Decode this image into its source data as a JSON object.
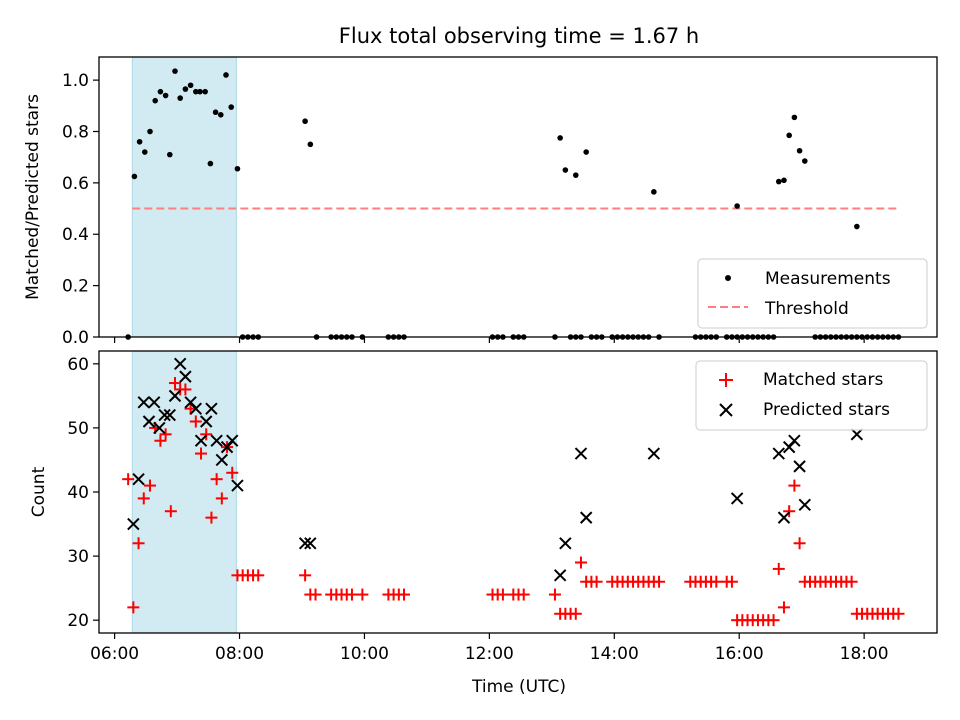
{
  "figure": {
    "title": "Flux total observing time = 1.67 h"
  },
  "colors": {
    "measurements": "#000000",
    "threshold": "#ff7f7f",
    "matched": "#ff0000",
    "predicted": "#000000",
    "shade": "#add8e6"
  },
  "chart_data": [
    {
      "type": "scatter",
      "title": "Flux total observing time = 1.67 h",
      "xlabel": "",
      "ylabel": "Matched/Predicted stars",
      "xlim": [
        "05:45",
        "19:10"
      ],
      "ylim": [
        0,
        1.09
      ],
      "yticks": [
        "0.0",
        "0.2",
        "0.4",
        "0.6",
        "0.8",
        "1.0"
      ],
      "shaded_interval": [
        "06:17",
        "07:57"
      ],
      "legend": {
        "position": "lower right",
        "entries": [
          "Measurements",
          "Threshold"
        ]
      },
      "threshold": {
        "name": "Threshold",
        "value": 0.5,
        "x": [
          "06:17",
          "18:32"
        ]
      },
      "series": [
        {
          "name": "Measurements",
          "marker": "dot",
          "points": [
            [
              "06:13",
              0.0
            ],
            [
              "06:19",
              0.625
            ],
            [
              "06:24",
              0.76
            ],
            [
              "06:29",
              0.72
            ],
            [
              "06:34",
              0.8
            ],
            [
              "06:39",
              0.92
            ],
            [
              "06:44",
              0.955
            ],
            [
              "06:49",
              0.94
            ],
            [
              "06:53",
              0.71
            ],
            [
              "06:58",
              1.035
            ],
            [
              "07:03",
              0.93
            ],
            [
              "07:08",
              0.965
            ],
            [
              "07:13",
              0.98
            ],
            [
              "07:18",
              0.955
            ],
            [
              "07:22",
              0.955
            ],
            [
              "07:27",
              0.955
            ],
            [
              "07:32",
              0.675
            ],
            [
              "07:37",
              0.875
            ],
            [
              "07:42",
              0.865
            ],
            [
              "07:47",
              1.02
            ],
            [
              "07:52",
              0.895
            ],
            [
              "07:58",
              0.655
            ],
            [
              "08:03",
              0.0
            ],
            [
              "08:08",
              0.0
            ],
            [
              "08:13",
              0.0
            ],
            [
              "08:18",
              0.0
            ],
            [
              "09:03",
              0.84
            ],
            [
              "09:08",
              0.75
            ],
            [
              "09:14",
              0.0
            ],
            [
              "09:28",
              0.0
            ],
            [
              "09:33",
              0.0
            ],
            [
              "09:38",
              0.0
            ],
            [
              "09:43",
              0.0
            ],
            [
              "09:48",
              0.0
            ],
            [
              "09:58",
              0.0
            ],
            [
              "10:23",
              0.0
            ],
            [
              "10:28",
              0.0
            ],
            [
              "10:33",
              0.0
            ],
            [
              "10:38",
              0.0
            ],
            [
              "12:03",
              0.0
            ],
            [
              "12:08",
              0.0
            ],
            [
              "12:13",
              0.0
            ],
            [
              "12:23",
              0.0
            ],
            [
              "12:28",
              0.0
            ],
            [
              "12:33",
              0.0
            ],
            [
              "13:03",
              0.0
            ],
            [
              "13:08",
              0.775
            ],
            [
              "13:13",
              0.65
            ],
            [
              "13:18",
              0.0
            ],
            [
              "13:23",
              0.0
            ],
            [
              "13:28",
              0.0
            ],
            [
              "13:23",
              0.63
            ],
            [
              "13:33",
              0.72
            ],
            [
              "13:38",
              0.0
            ],
            [
              "13:43",
              0.0
            ],
            [
              "13:48",
              0.0
            ],
            [
              "13:58",
              0.0
            ],
            [
              "14:03",
              0.0
            ],
            [
              "14:08",
              0.0
            ],
            [
              "14:13",
              0.0
            ],
            [
              "14:18",
              0.0
            ],
            [
              "14:23",
              0.0
            ],
            [
              "14:28",
              0.0
            ],
            [
              "14:33",
              0.0
            ],
            [
              "14:38",
              0.565
            ],
            [
              "14:43",
              0.0
            ],
            [
              "15:18",
              0.0
            ],
            [
              "15:23",
              0.0
            ],
            [
              "15:28",
              0.0
            ],
            [
              "15:33",
              0.0
            ],
            [
              "15:38",
              0.0
            ],
            [
              "15:48",
              0.0
            ],
            [
              "15:53",
              0.0
            ],
            [
              "15:58",
              0.0
            ],
            [
              "15:58",
              0.51
            ],
            [
              "16:03",
              0.0
            ],
            [
              "16:08",
              0.0
            ],
            [
              "16:13",
              0.0
            ],
            [
              "16:18",
              0.0
            ],
            [
              "16:23",
              0.0
            ],
            [
              "16:28",
              0.0
            ],
            [
              "16:33",
              0.0
            ],
            [
              "16:38",
              0.605
            ],
            [
              "16:43",
              0.61
            ],
            [
              "16:48",
              0.785
            ],
            [
              "16:53",
              0.855
            ],
            [
              "16:58",
              0.725
            ],
            [
              "17:03",
              0.685
            ],
            [
              "17:13",
              0.0
            ],
            [
              "17:18",
              0.0
            ],
            [
              "17:23",
              0.0
            ],
            [
              "17:28",
              0.0
            ],
            [
              "17:33",
              0.0
            ],
            [
              "17:38",
              0.0
            ],
            [
              "17:43",
              0.0
            ],
            [
              "17:48",
              0.0
            ],
            [
              "17:53",
              0.0
            ],
            [
              "17:58",
              0.0
            ],
            [
              "17:53",
              0.43
            ],
            [
              "18:03",
              0.0
            ],
            [
              "18:08",
              0.0
            ],
            [
              "18:13",
              0.0
            ],
            [
              "18:18",
              0.0
            ],
            [
              "18:23",
              0.0
            ],
            [
              "18:28",
              0.0
            ],
            [
              "18:33",
              0.0
            ]
          ]
        }
      ]
    },
    {
      "type": "scatter",
      "title": "",
      "xlabel": "Time (UTC)",
      "ylabel": "Count",
      "xlim": [
        "05:45",
        "19:10"
      ],
      "ylim": [
        18,
        62
      ],
      "xticks": [
        "06:00",
        "08:00",
        "10:00",
        "12:00",
        "14:00",
        "16:00",
        "18:00"
      ],
      "yticks": [
        "20",
        "30",
        "40",
        "50",
        "60"
      ],
      "shaded_interval": [
        "06:17",
        "07:57"
      ],
      "legend": {
        "position": "upper right",
        "entries": [
          "Matched stars",
          "Predicted stars"
        ]
      },
      "series": [
        {
          "name": "Matched stars",
          "marker": "plus",
          "points": [
            [
              "06:13",
              42
            ],
            [
              "06:18",
              22
            ],
            [
              "06:23",
              32
            ],
            [
              "06:28",
              39
            ],
            [
              "06:34",
              41
            ],
            [
              "06:39",
              50
            ],
            [
              "06:44",
              48
            ],
            [
              "06:49",
              49
            ],
            [
              "06:54",
              37
            ],
            [
              "06:58",
              57
            ],
            [
              "07:03",
              56
            ],
            [
              "07:08",
              56
            ],
            [
              "07:13",
              53
            ],
            [
              "07:18",
              51
            ],
            [
              "07:23",
              46
            ],
            [
              "07:28",
              49
            ],
            [
              "07:33",
              36
            ],
            [
              "07:38",
              42
            ],
            [
              "07:43",
              39
            ],
            [
              "07:48",
              47
            ],
            [
              "07:53",
              43
            ],
            [
              "07:58",
              27
            ],
            [
              "08:03",
              27
            ],
            [
              "08:08",
              27
            ],
            [
              "08:13",
              27
            ],
            [
              "08:18",
              27
            ],
            [
              "09:03",
              27
            ],
            [
              "09:08",
              24
            ],
            [
              "09:13",
              24
            ],
            [
              "09:28",
              24
            ],
            [
              "09:33",
              24
            ],
            [
              "09:38",
              24
            ],
            [
              "09:43",
              24
            ],
            [
              "09:48",
              24
            ],
            [
              "09:58",
              24
            ],
            [
              "10:23",
              24
            ],
            [
              "10:28",
              24
            ],
            [
              "10:33",
              24
            ],
            [
              "10:38",
              24
            ],
            [
              "12:03",
              24
            ],
            [
              "12:08",
              24
            ],
            [
              "12:13",
              24
            ],
            [
              "12:23",
              24
            ],
            [
              "12:28",
              24
            ],
            [
              "12:33",
              24
            ],
            [
              "13:03",
              24
            ],
            [
              "13:08",
              21
            ],
            [
              "13:13",
              21
            ],
            [
              "13:18",
              21
            ],
            [
              "13:23",
              21
            ],
            [
              "13:28",
              29
            ],
            [
              "13:33",
              26
            ],
            [
              "13:38",
              26
            ],
            [
              "13:43",
              26
            ],
            [
              "13:58",
              26
            ],
            [
              "14:03",
              26
            ],
            [
              "14:08",
              26
            ],
            [
              "14:13",
              26
            ],
            [
              "14:18",
              26
            ],
            [
              "14:23",
              26
            ],
            [
              "14:28",
              26
            ],
            [
              "14:33",
              26
            ],
            [
              "14:38",
              26
            ],
            [
              "14:43",
              26
            ],
            [
              "15:13",
              26
            ],
            [
              "15:18",
              26
            ],
            [
              "15:23",
              26
            ],
            [
              "15:28",
              26
            ],
            [
              "15:33",
              26
            ],
            [
              "15:38",
              26
            ],
            [
              "15:48",
              26
            ],
            [
              "15:53",
              26
            ],
            [
              "15:58",
              20
            ],
            [
              "16:03",
              20
            ],
            [
              "16:08",
              20
            ],
            [
              "16:13",
              20
            ],
            [
              "16:18",
              20
            ],
            [
              "16:23",
              20
            ],
            [
              "16:28",
              20
            ],
            [
              "16:33",
              20
            ],
            [
              "16:38",
              28
            ],
            [
              "16:43",
              22
            ],
            [
              "16:48",
              37
            ],
            [
              "16:53",
              41
            ],
            [
              "16:58",
              32
            ],
            [
              "17:03",
              26
            ],
            [
              "17:08",
              26
            ],
            [
              "17:13",
              26
            ],
            [
              "17:18",
              26
            ],
            [
              "17:23",
              26
            ],
            [
              "17:28",
              26
            ],
            [
              "17:33",
              26
            ],
            [
              "17:38",
              26
            ],
            [
              "17:43",
              26
            ],
            [
              "17:48",
              26
            ],
            [
              "17:53",
              21
            ],
            [
              "17:58",
              21
            ],
            [
              "18:03",
              21
            ],
            [
              "18:08",
              21
            ],
            [
              "18:13",
              21
            ],
            [
              "18:18",
              21
            ],
            [
              "18:23",
              21
            ],
            [
              "18:28",
              21
            ],
            [
              "18:33",
              21
            ]
          ]
        },
        {
          "name": "Predicted stars",
          "marker": "x",
          "points": [
            [
              "06:18",
              35
            ],
            [
              "06:23",
              42
            ],
            [
              "06:28",
              54
            ],
            [
              "06:33",
              51
            ],
            [
              "06:38",
              54
            ],
            [
              "06:43",
              50
            ],
            [
              "06:48",
              52
            ],
            [
              "06:53",
              52
            ],
            [
              "06:58",
              55
            ],
            [
              "07:03",
              60
            ],
            [
              "07:08",
              58
            ],
            [
              "07:13",
              54
            ],
            [
              "07:18",
              53
            ],
            [
              "07:23",
              48
            ],
            [
              "07:28",
              51
            ],
            [
              "07:33",
              53
            ],
            [
              "07:38",
              48
            ],
            [
              "07:43",
              45
            ],
            [
              "07:48",
              47
            ],
            [
              "07:53",
              48
            ],
            [
              "07:58",
              41
            ],
            [
              "09:03",
              32
            ],
            [
              "09:08",
              32
            ],
            [
              "13:08",
              27
            ],
            [
              "13:13",
              32
            ],
            [
              "13:28",
              46
            ],
            [
              "13:33",
              36
            ],
            [
              "14:38",
              46
            ],
            [
              "15:58",
              39
            ],
            [
              "16:38",
              46
            ],
            [
              "16:43",
              36
            ],
            [
              "16:48",
              47
            ],
            [
              "16:53",
              48
            ],
            [
              "16:58",
              44
            ],
            [
              "17:03",
              38
            ],
            [
              "17:53",
              49
            ]
          ]
        }
      ]
    }
  ]
}
